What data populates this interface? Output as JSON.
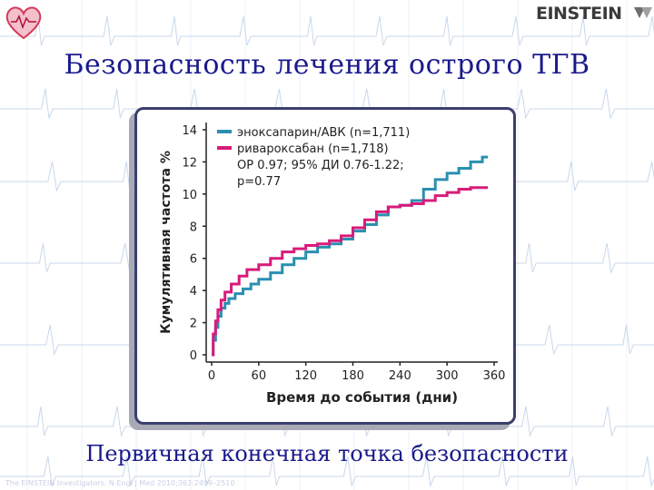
{
  "slide": {
    "title": "Безопасность лечения острого ТГВ",
    "caption": "Первичная конечная точка безопасности",
    "footnote": "The EINSTEIN Investigators. N Engl J Med 2010;363:2499–2510",
    "logo_text": "EINSTEIN"
  },
  "colors": {
    "title": "#1a1a8c",
    "series_1": "#2a8fb0",
    "series_2": "#d81b7a",
    "axis": "#222222",
    "ecg_grid": "#c8d8ea"
  },
  "chart_data": {
    "type": "line",
    "title": "",
    "xlabel": "Время до события (дни)",
    "ylabel": "Кумулятивная частота %",
    "xlim": [
      0,
      360
    ],
    "ylim": [
      0,
      14
    ],
    "x_ticks": [
      0,
      60,
      120,
      180,
      240,
      300,
      360
    ],
    "y_ticks": [
      0,
      2,
      4,
      6,
      8,
      10,
      12,
      14
    ],
    "grid": false,
    "legend_position": "top-left",
    "legend": [
      "эноксапарин/АВК (n=1,711)",
      "ривароксабан (n=1,718)"
    ],
    "annotation": [
      "ОР 0.97; 95% ДИ 0.76-1.22;",
      "p=0.77"
    ],
    "series": [
      {
        "name": "эноксапарин/АВК (n=1,711)",
        "color": "#2a8fb0",
        "step": true,
        "points": [
          [
            0,
            0
          ],
          [
            2,
            0.9
          ],
          [
            5,
            1.7
          ],
          [
            8,
            2.4
          ],
          [
            12,
            2.9
          ],
          [
            17,
            3.2
          ],
          [
            22,
            3.5
          ],
          [
            30,
            3.8
          ],
          [
            40,
            4.1
          ],
          [
            50,
            4.4
          ],
          [
            60,
            4.7
          ],
          [
            75,
            5.1
          ],
          [
            90,
            5.6
          ],
          [
            105,
            6.0
          ],
          [
            120,
            6.4
          ],
          [
            135,
            6.7
          ],
          [
            150,
            6.9
          ],
          [
            165,
            7.2
          ],
          [
            180,
            7.7
          ],
          [
            195,
            8.1
          ],
          [
            210,
            8.7
          ],
          [
            225,
            9.2
          ],
          [
            240,
            9.3
          ],
          [
            255,
            9.6
          ],
          [
            270,
            10.3
          ],
          [
            285,
            10.9
          ],
          [
            300,
            11.3
          ],
          [
            315,
            11.6
          ],
          [
            330,
            12.0
          ],
          [
            345,
            12.3
          ],
          [
            352,
            12.3
          ]
        ]
      },
      {
        "name": "ривароксабан (n=1,718)",
        "color": "#d81b7a",
        "step": true,
        "points": [
          [
            0,
            0
          ],
          [
            2,
            1.3
          ],
          [
            5,
            2.1
          ],
          [
            8,
            2.8
          ],
          [
            12,
            3.4
          ],
          [
            17,
            3.9
          ],
          [
            25,
            4.4
          ],
          [
            35,
            4.9
          ],
          [
            45,
            5.3
          ],
          [
            60,
            5.6
          ],
          [
            75,
            6.0
          ],
          [
            90,
            6.4
          ],
          [
            105,
            6.6
          ],
          [
            120,
            6.8
          ],
          [
            135,
            6.9
          ],
          [
            150,
            7.1
          ],
          [
            165,
            7.4
          ],
          [
            180,
            7.9
          ],
          [
            195,
            8.4
          ],
          [
            210,
            8.9
          ],
          [
            225,
            9.2
          ],
          [
            240,
            9.3
          ],
          [
            255,
            9.4
          ],
          [
            270,
            9.6
          ],
          [
            285,
            9.9
          ],
          [
            300,
            10.1
          ],
          [
            315,
            10.3
          ],
          [
            330,
            10.4
          ],
          [
            345,
            10.4
          ],
          [
            352,
            10.4
          ]
        ]
      }
    ]
  }
}
